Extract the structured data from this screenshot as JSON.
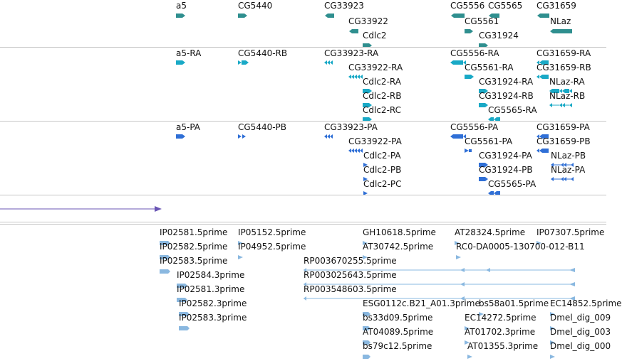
{
  "colors": {
    "gene": "#2f8f8f",
    "transcript": "#19a9c6",
    "protein": "#2f6fd6",
    "scaffold": "#6a55b5",
    "est": "#8ab8e0",
    "separator": "#c6c6c6"
  },
  "tracks": {
    "genes": [
      {
        "label": "a5",
        "glyph": "gene-right-icon"
      },
      {
        "label": "CG5440",
        "glyph": "gene-right-icon"
      },
      {
        "label": "CG33923",
        "glyph": "gene-left-icon"
      },
      {
        "label": "CG33922",
        "glyph": "gene-left-icon"
      },
      {
        "label": "Cdlc2",
        "glyph": "gene-right-icon"
      },
      {
        "label": "CG5556",
        "glyph": "gene-left-icon"
      },
      {
        "label": "CG5565",
        "glyph": "gene-left-icon"
      },
      {
        "label": "CG5561",
        "glyph": "gene-right-icon"
      },
      {
        "label": "CG31924",
        "glyph": "gene-right-icon"
      },
      {
        "label": "CG31659",
        "glyph": "gene-left-icon"
      },
      {
        "label": "NLaz",
        "glyph": "gene-left-icon"
      }
    ],
    "transcripts": [
      {
        "label": "a5-RA",
        "glyph": "transcript-icon"
      },
      {
        "label": "CG5440-RB",
        "glyph": "transcript-icon"
      },
      {
        "label": "CG33923-RA",
        "glyph": "transcript-icon"
      },
      {
        "label": "CG33922-RA",
        "glyph": "transcript-icon"
      },
      {
        "label": "Cdlc2-RA",
        "glyph": "transcript-icon"
      },
      {
        "label": "Cdlc2-RB",
        "glyph": "transcript-icon"
      },
      {
        "label": "Cdlc2-RC",
        "glyph": "transcript-icon"
      },
      {
        "label": "CG5556-RA",
        "glyph": "transcript-icon"
      },
      {
        "label": "CG5561-RA",
        "glyph": "transcript-icon"
      },
      {
        "label": "CG31924-RA",
        "glyph": "transcript-icon"
      },
      {
        "label": "CG31924-RB",
        "glyph": "transcript-icon"
      },
      {
        "label": "CG5565-RA",
        "glyph": "transcript-icon"
      },
      {
        "label": "CG31659-RA",
        "glyph": "transcript-icon"
      },
      {
        "label": "CG31659-RB",
        "glyph": "transcript-icon"
      },
      {
        "label": "NLaz-RA",
        "glyph": "transcript-icon"
      },
      {
        "label": "NLaz-RB",
        "glyph": "transcript-icon"
      }
    ],
    "proteins": [
      {
        "label": "a5-PA",
        "glyph": "protein-icon"
      },
      {
        "label": "CG5440-PB",
        "glyph": "protein-icon"
      },
      {
        "label": "CG33923-PA",
        "glyph": "protein-icon"
      },
      {
        "label": "CG33922-PA",
        "glyph": "protein-icon"
      },
      {
        "label": "Cdlc2-PA",
        "glyph": "protein-icon"
      },
      {
        "label": "Cdlc2-PB",
        "glyph": "protein-icon"
      },
      {
        "label": "Cdlc2-PC",
        "glyph": "protein-icon"
      },
      {
        "label": "CG5556-PA",
        "glyph": "protein-icon"
      },
      {
        "label": "CG5561-PA",
        "glyph": "protein-icon"
      },
      {
        "label": "CG31924-PA",
        "glyph": "protein-icon"
      },
      {
        "label": "CG31924-PB",
        "glyph": "protein-icon"
      },
      {
        "label": "CG5565-PA",
        "glyph": "protein-icon"
      },
      {
        "label": "CG31659-PA",
        "glyph": "protein-icon"
      },
      {
        "label": "CG31659-PB",
        "glyph": "protein-icon"
      },
      {
        "label": "NLaz-PB",
        "glyph": "protein-icon"
      },
      {
        "label": "NLaz-PA",
        "glyph": "protein-icon"
      }
    ],
    "ests": [
      {
        "label": "IP02581.5prime"
      },
      {
        "label": "IP02582.5prime"
      },
      {
        "label": "IP02583.5prime"
      },
      {
        "label": "IP02584.3prime"
      },
      {
        "label": "IP02581.3prime"
      },
      {
        "label": "IP02582.3prime"
      },
      {
        "label": "IP02583.3prime"
      },
      {
        "label": "IP05152.5prime"
      },
      {
        "label": "IP04952.5prime"
      },
      {
        "label": "RP003670255.5prime"
      },
      {
        "label": "RP003025643.5prime"
      },
      {
        "label": "RP003548603.5prime"
      },
      {
        "label": "GH10618.5prime"
      },
      {
        "label": "AT30742.5prime"
      },
      {
        "label": "AT28324.5prime"
      },
      {
        "label": "IP07307.5prime"
      },
      {
        "label": "RC0-DA0005-130700-012-B11"
      },
      {
        "label": "ESG0112c.B21_A01.3prime"
      },
      {
        "label": "bs58a01.5prime"
      },
      {
        "label": "EC14852.5prime"
      },
      {
        "label": "bs33d09.5prime"
      },
      {
        "label": "EC14272.5prime"
      },
      {
        "label": "Dmel_dig_009"
      },
      {
        "label": "AT04089.5prime"
      },
      {
        "label": "AT01702.3prime"
      },
      {
        "label": "Dmel_dig_003"
      },
      {
        "label": "bs79c12.5prime"
      },
      {
        "label": "AT01355.3prime"
      },
      {
        "label": "Dmel_dig_000"
      }
    ]
  }
}
